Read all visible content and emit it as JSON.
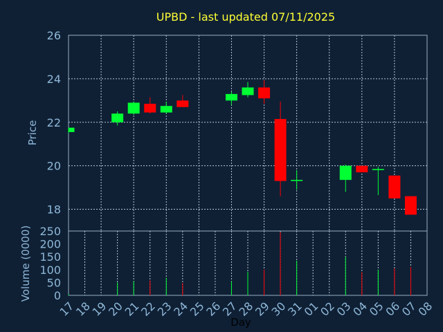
{
  "chart_data": {
    "type": "candlestick",
    "title": "UPBD - last updated 07/11/2025",
    "colors": {
      "up": "#00ff33",
      "down": "#ff0000",
      "background": "#0f2035",
      "title": "#ffff33",
      "ticks": "#8fb8d8"
    },
    "price_panel": {
      "ylabel": "Price",
      "ylim": [
        17,
        26
      ],
      "yticks": [
        18,
        20,
        22,
        24,
        26
      ],
      "grid": true
    },
    "volume_panel": {
      "ylabel": "Volume (0000)",
      "ylim": [
        0,
        250
      ],
      "yticks": [
        0,
        50,
        100,
        150,
        200,
        250
      ]
    },
    "xlabel": "Day",
    "x_tick_labels": [
      "17",
      "18",
      "19",
      "20",
      "21",
      "22",
      "23",
      "24",
      "25",
      "26",
      "27",
      "28",
      "29",
      "30",
      "31",
      "01",
      "02",
      "03",
      "04",
      "05",
      "06",
      "07",
      "08"
    ],
    "candles": [
      {
        "day": "17",
        "open": 21.55,
        "high": 21.75,
        "low": 21.5,
        "close": 21.75,
        "volume": 5
      },
      {
        "day": "20",
        "open": 22.0,
        "high": 22.5,
        "low": 21.85,
        "close": 22.4,
        "volume": 50
      },
      {
        "day": "21",
        "open": 22.4,
        "high": 22.95,
        "low": 22.35,
        "close": 22.9,
        "volume": 55
      },
      {
        "day": "22",
        "open": 22.85,
        "high": 23.15,
        "low": 22.4,
        "close": 22.45,
        "volume": 58
      },
      {
        "day": "23",
        "open": 22.45,
        "high": 22.95,
        "low": 22.4,
        "close": 22.75,
        "volume": 68
      },
      {
        "day": "24",
        "open": 23.0,
        "high": 23.25,
        "low": 22.7,
        "close": 22.7,
        "volume": 48
      },
      {
        "day": "27",
        "open": 23.0,
        "high": 23.4,
        "low": 22.8,
        "close": 23.3,
        "volume": 55
      },
      {
        "day": "28",
        "open": 23.25,
        "high": 23.85,
        "low": 23.15,
        "close": 23.6,
        "volume": 92
      },
      {
        "day": "29",
        "open": 23.6,
        "high": 23.95,
        "low": 22.85,
        "close": 23.1,
        "volume": 100
      },
      {
        "day": "30",
        "open": 22.15,
        "high": 22.95,
        "low": 18.6,
        "close": 19.3,
        "volume": 245
      },
      {
        "day": "31",
        "open": 19.3,
        "high": 19.8,
        "low": 18.9,
        "close": 19.35,
        "volume": 135
      },
      {
        "day": "03",
        "open": 19.35,
        "high": 20.05,
        "low": 18.8,
        "close": 20.0,
        "volume": 150
      },
      {
        "day": "04",
        "open": 20.0,
        "high": 20.0,
        "low": 19.7,
        "close": 19.7,
        "volume": 90
      },
      {
        "day": "05",
        "open": 19.8,
        "high": 19.95,
        "low": 18.65,
        "close": 19.85,
        "volume": 100
      },
      {
        "day": "06",
        "open": 19.55,
        "high": 19.55,
        "low": 18.5,
        "close": 18.5,
        "volume": 105
      },
      {
        "day": "07",
        "open": 18.6,
        "high": 18.6,
        "low": 17.75,
        "close": 17.75,
        "volume": 110
      }
    ]
  }
}
